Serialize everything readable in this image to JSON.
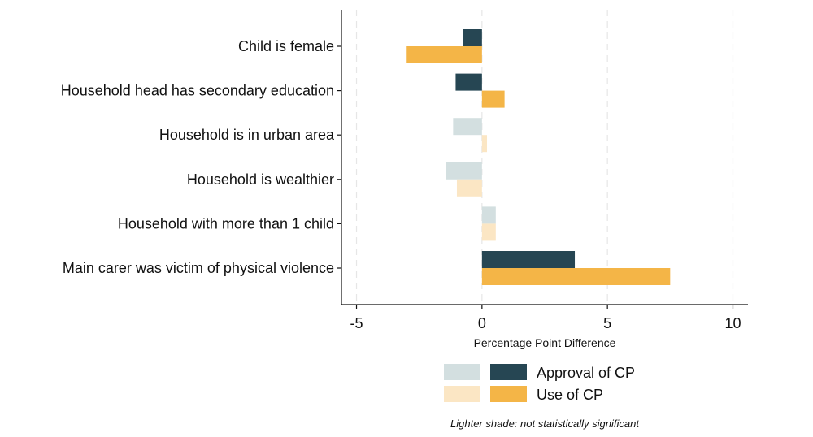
{
  "chart_data": {
    "type": "bar",
    "orientation": "horizontal",
    "categories": [
      "Child is female",
      "Household head has secondary education",
      "Household is in urban area",
      "Household is wealthier",
      "Household with more than 1 child",
      "Main carer was victim of physical violence"
    ],
    "series": [
      {
        "name": "Approval of CP",
        "values": [
          -0.75,
          -1.05,
          -1.15,
          -1.45,
          0.55,
          3.7
        ],
        "significant": [
          true,
          true,
          false,
          false,
          false,
          true
        ],
        "color": "#264653",
        "light_color": "#d3dfe0"
      },
      {
        "name": "Use of CP",
        "values": [
          -3.0,
          0.9,
          0.2,
          -1.0,
          0.55,
          7.5
        ],
        "significant": [
          true,
          true,
          false,
          false,
          false,
          true
        ],
        "color": "#f4b547",
        "light_color": "#fbe6c4"
      }
    ],
    "xlabel": "Percentage Point Difference",
    "xticks": [
      -5,
      0,
      5,
      10
    ],
    "xlim": [
      -5.6,
      10.6
    ],
    "grid": "vertical dashed",
    "legend_position": "bottom",
    "note": "Lighter shade: not statistically significant"
  }
}
